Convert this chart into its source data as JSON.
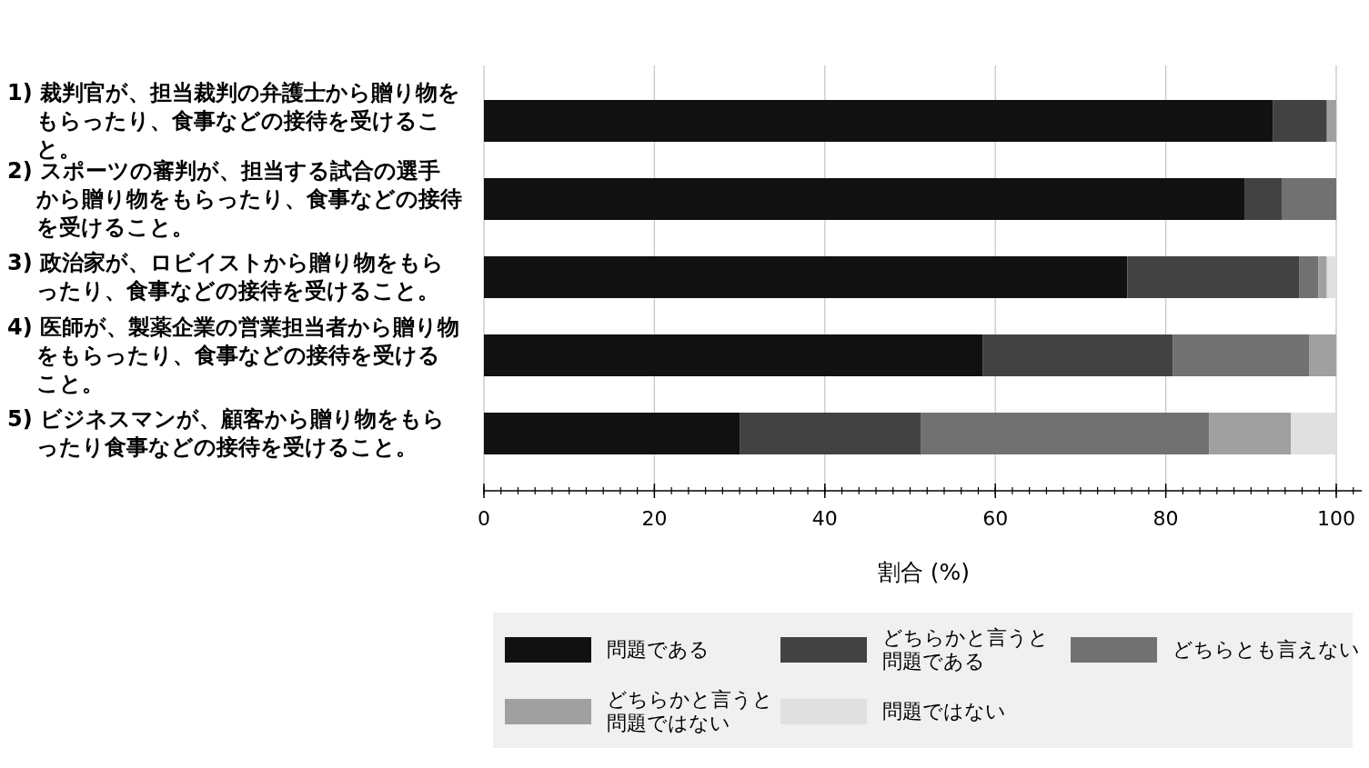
{
  "chart_data": {
    "type": "bar",
    "orientation": "horizontal",
    "stacked": true,
    "xlabel": "割合 (%)",
    "categories": [
      "1) 裁判官が、担当裁判の弁護士から贈り物をもらったり、食事などの接待を受けること。",
      "2) スポーツの審判が、担当する試合の選手から贈り物をもらったり、食事などの接待を受けること。",
      "3) 政治家が、ロビイストから贈り物をもらったり、食事などの接待を受けること。",
      "4) 医師が、製薬企業の営業担当者から贈り物をもらったり、食事などの接待を受けること。",
      "5) ビジネスマンが、顧客から贈り物をもらったり食事などの接待を受けること。"
    ],
    "series": [
      {
        "name": "問題である",
        "color": "#111111",
        "values": [
          92.6,
          89.3,
          75.5,
          58.5,
          30.0
        ]
      },
      {
        "name": "どちらかと言うと問題である",
        "color": "#424242",
        "values": [
          6.3,
          4.3,
          20.2,
          22.3,
          21.3
        ]
      },
      {
        "name": "どちらとも言えない",
        "color": "#717171",
        "values": [
          0,
          6.4,
          2.2,
          16.0,
          33.8
        ]
      },
      {
        "name": "どちらかと言うと問題ではない",
        "color": "#a0a0a0",
        "values": [
          1.1,
          0,
          1.0,
          3.2,
          9.6
        ]
      },
      {
        "name": "問題ではない",
        "color": "#e0e0e0",
        "values": [
          0,
          0,
          1.1,
          0,
          5.3
        ]
      }
    ],
    "xlim": [
      0,
      103
    ],
    "xticks": [
      0,
      20,
      40,
      60,
      80,
      100
    ],
    "grid": "x",
    "legend": "bottom"
  }
}
